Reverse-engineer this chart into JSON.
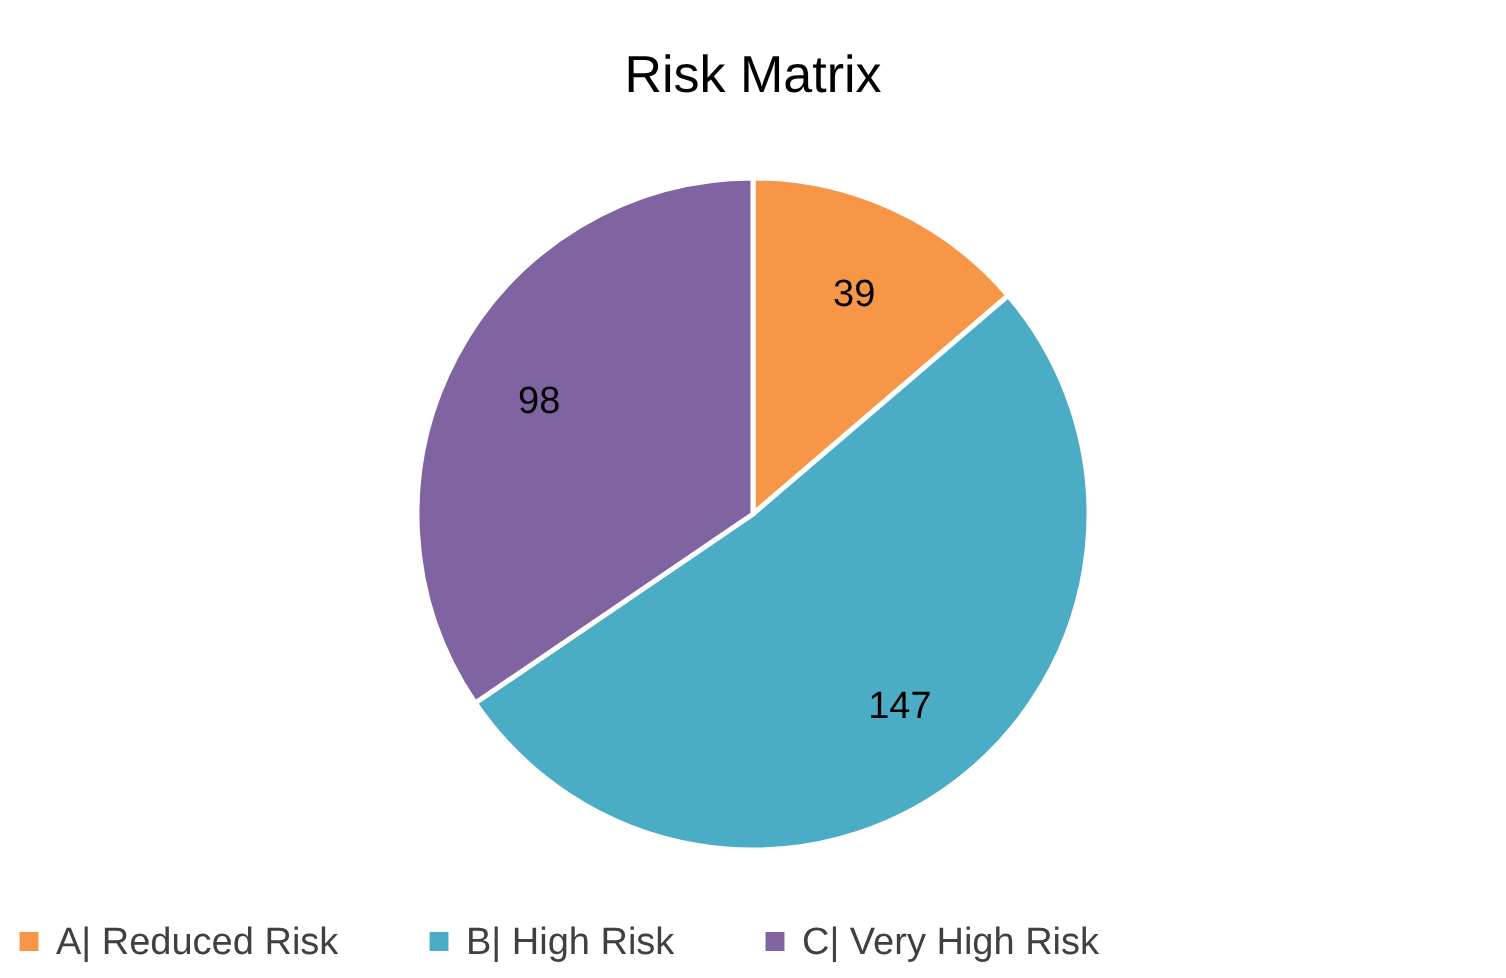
{
  "chart_data": {
    "type": "pie",
    "title": "Risk Matrix",
    "categories": [
      "A| Reduced Risk",
      "B| High Risk",
      "C| Very High Risk"
    ],
    "values": [
      39,
      147,
      98
    ],
    "colors": [
      "#f79646",
      "#4bacc6",
      "#8064a2"
    ],
    "data_labels": true,
    "legend": "bottom"
  }
}
